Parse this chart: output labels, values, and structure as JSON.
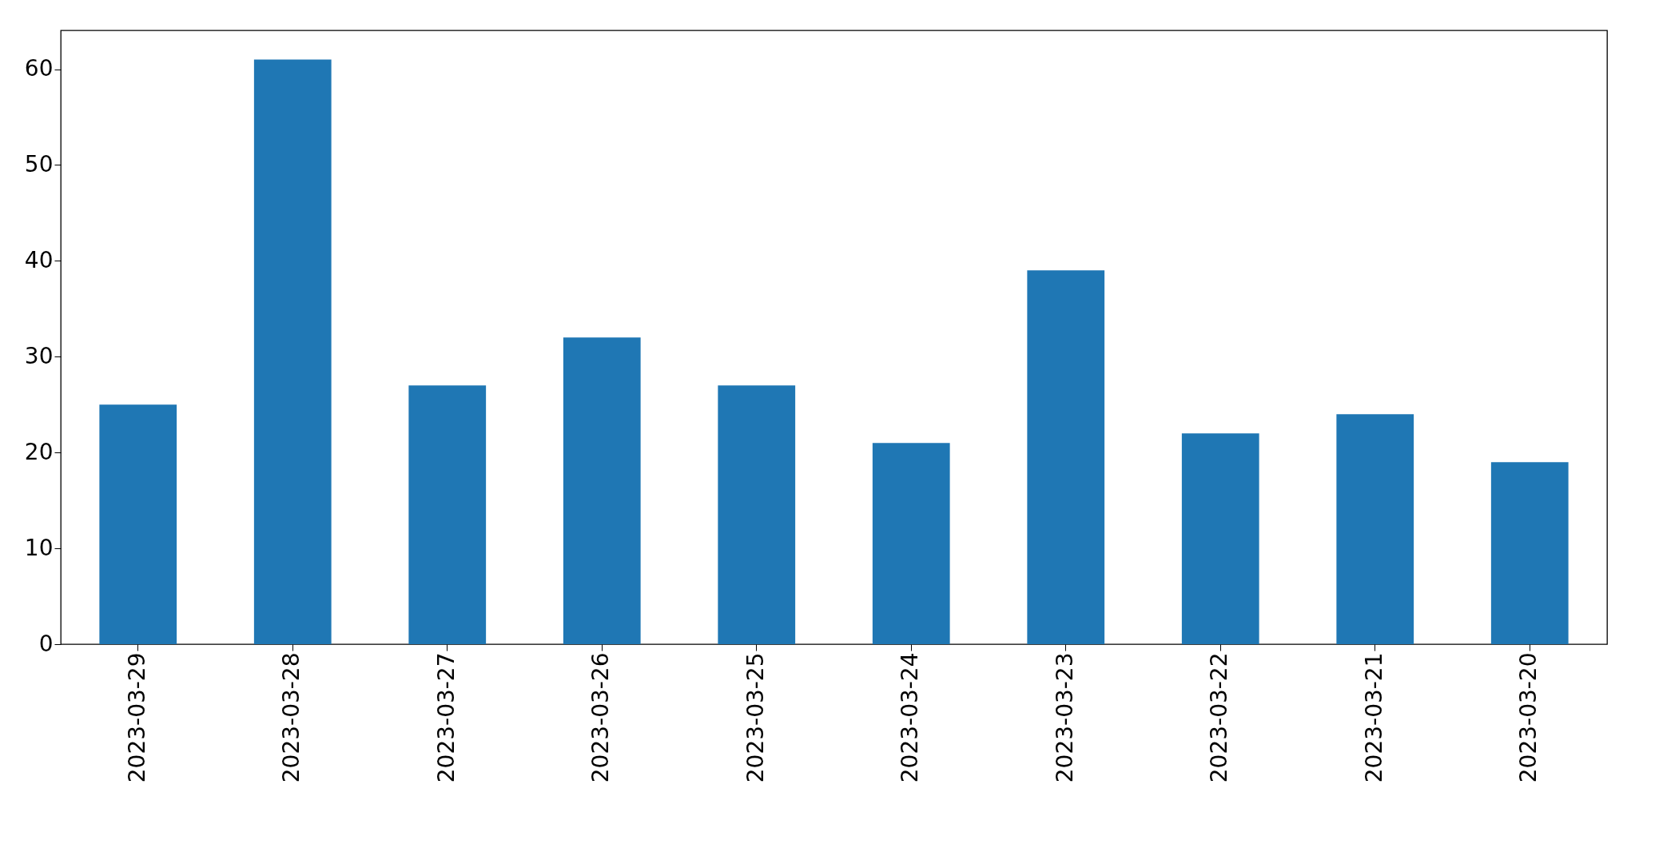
{
  "chart_data": {
    "type": "bar",
    "categories": [
      "2023-03-29",
      "2023-03-28",
      "2023-03-27",
      "2023-03-26",
      "2023-03-25",
      "2023-03-24",
      "2023-03-23",
      "2023-03-22",
      "2023-03-21",
      "2023-03-20"
    ],
    "values": [
      25,
      61,
      27,
      32,
      27,
      21,
      39,
      22,
      24,
      19
    ],
    "color": "#1f77b4",
    "ylim": [
      0,
      64.05
    ],
    "yticks": [
      0,
      10,
      20,
      30,
      40,
      50,
      60
    ],
    "grid": false
  }
}
